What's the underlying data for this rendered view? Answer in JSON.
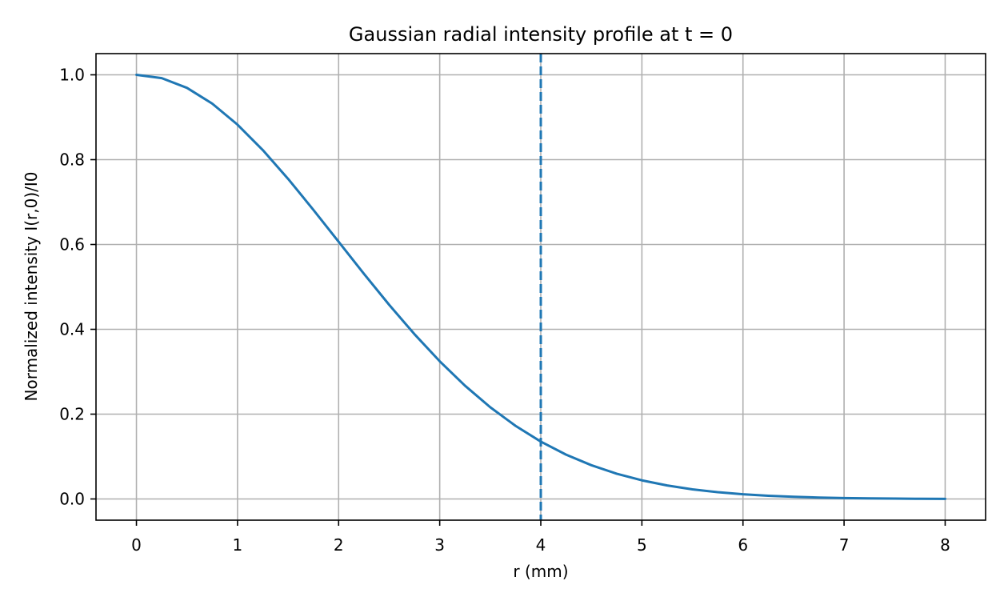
{
  "chart_data": {
    "type": "line",
    "title": "Gaussian radial intensity profile at t = 0",
    "xlabel": "r (mm)",
    "ylabel": "Normalized intensity I(r,0)/I0",
    "xlim": [
      -0.4,
      8.4
    ],
    "ylim": [
      -0.05,
      1.05
    ],
    "x_ticks": [
      0,
      1,
      2,
      3,
      4,
      5,
      6,
      7,
      8
    ],
    "y_ticks": [
      0.0,
      0.2,
      0.4,
      0.6,
      0.8,
      1.0
    ],
    "x_tick_labels": [
      "0",
      "1",
      "2",
      "3",
      "4",
      "5",
      "6",
      "7",
      "8"
    ],
    "y_tick_labels": [
      "0.0",
      "0.2",
      "0.4",
      "0.6",
      "0.8",
      "1.0"
    ],
    "grid": true,
    "series": [
      {
        "color": "#1f77b4",
        "x": [
          0,
          0.25,
          0.5,
          0.75,
          1.0,
          1.25,
          1.5,
          1.75,
          2.0,
          2.25,
          2.5,
          2.75,
          3.0,
          3.25,
          3.5,
          3.75,
          4.0,
          4.25,
          4.5,
          4.75,
          5.0,
          5.25,
          5.5,
          5.75,
          6.0,
          6.25,
          6.5,
          6.75,
          7.0,
          7.25,
          7.5,
          7.75,
          8.0
        ],
        "values": [
          1.0,
          0.9922,
          0.9692,
          0.9321,
          0.8825,
          0.8226,
          0.7548,
          0.6818,
          0.6065,
          0.5311,
          0.4578,
          0.3886,
          0.3247,
          0.2671,
          0.2163,
          0.1724,
          0.1353,
          0.1045,
          0.0796,
          0.0596,
          0.0439,
          0.0318,
          0.0227,
          0.016,
          0.0111,
          0.0076,
          0.0051,
          0.0034,
          0.0022,
          0.0014,
          0.0009,
          0.0005,
          0.0003
        ]
      }
    ],
    "vertical_lines": [
      {
        "x": 4,
        "style": "dashed",
        "color": "#1f77b4"
      }
    ]
  }
}
